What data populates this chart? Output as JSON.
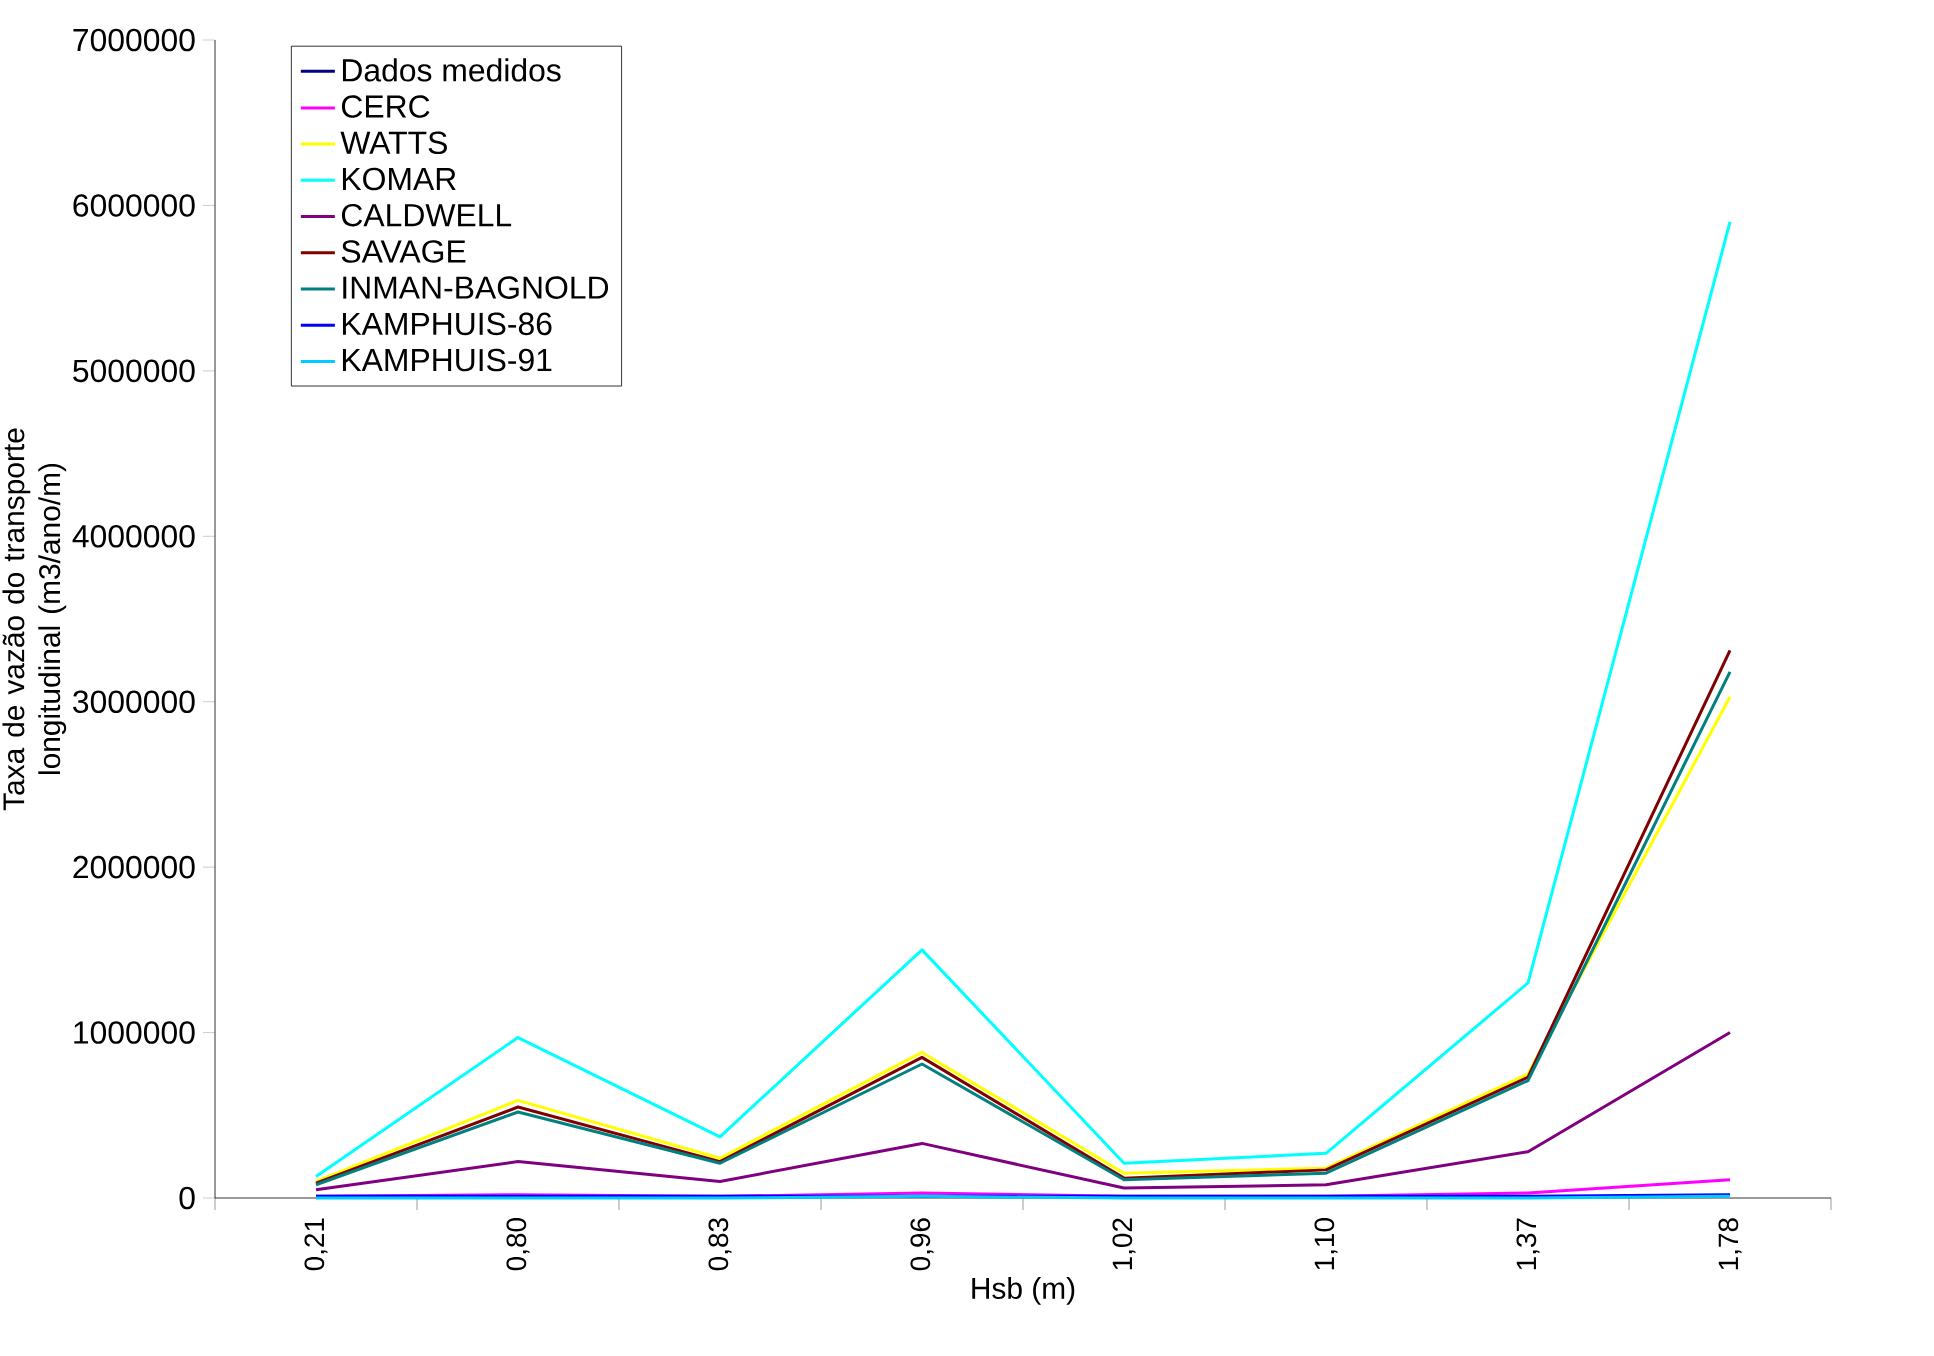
{
  "chart_data": {
    "type": "line",
    "xlabel": "Hsb (m)",
    "ylabel": "Taxa de vazão do transporte longitudinal (m3/ano/m)",
    "categories": [
      "0,21",
      "0,80",
      "0,83",
      "0,96",
      "1,02",
      "1,10",
      "1,37",
      "1,78"
    ],
    "ylim": [
      0,
      7000000
    ],
    "yticks": [
      0,
      1000000,
      2000000,
      3000000,
      4000000,
      5000000,
      6000000,
      7000000
    ],
    "grid": false,
    "legend": "top left",
    "marker": "none",
    "line_style": "solid",
    "series": [
      {
        "name": "Dados medidos",
        "color": "#000080",
        "values": [
          null,
          null,
          null,
          null,
          null,
          null,
          null,
          null
        ]
      },
      {
        "name": "CERC",
        "color": "#ff00ff",
        "values": [
          10000,
          20000,
          10000,
          30000,
          10000,
          10000,
          30000,
          110000
        ]
      },
      {
        "name": "WATTS",
        "color": "#ffff00",
        "values": [
          100000,
          590000,
          240000,
          880000,
          150000,
          180000,
          750000,
          3030000
        ]
      },
      {
        "name": "KOMAR",
        "color": "#00ffff",
        "values": [
          130000,
          970000,
          370000,
          1500000,
          210000,
          270000,
          1300000,
          5900000
        ]
      },
      {
        "name": "CALDWELL",
        "color": "#800080",
        "values": [
          50000,
          220000,
          100000,
          330000,
          60000,
          80000,
          280000,
          1000000
        ]
      },
      {
        "name": "SAVAGE",
        "color": "#800000",
        "values": [
          90000,
          550000,
          220000,
          850000,
          120000,
          170000,
          730000,
          3310000
        ]
      },
      {
        "name": "INMAN-BAGNOLD",
        "color": "#008080",
        "values": [
          80000,
          520000,
          210000,
          810000,
          110000,
          150000,
          710000,
          3180000
        ]
      },
      {
        "name": "KAMPHUIS-86",
        "color": "#0000ff",
        "values": [
          10000,
          10000,
          10000,
          10000,
          10000,
          10000,
          10000,
          20000
        ]
      },
      {
        "name": "KAMPHUIS-91",
        "color": "#00ccff",
        "values": [
          0,
          0,
          0,
          10000,
          0,
          0,
          0,
          10000
        ]
      }
    ]
  }
}
